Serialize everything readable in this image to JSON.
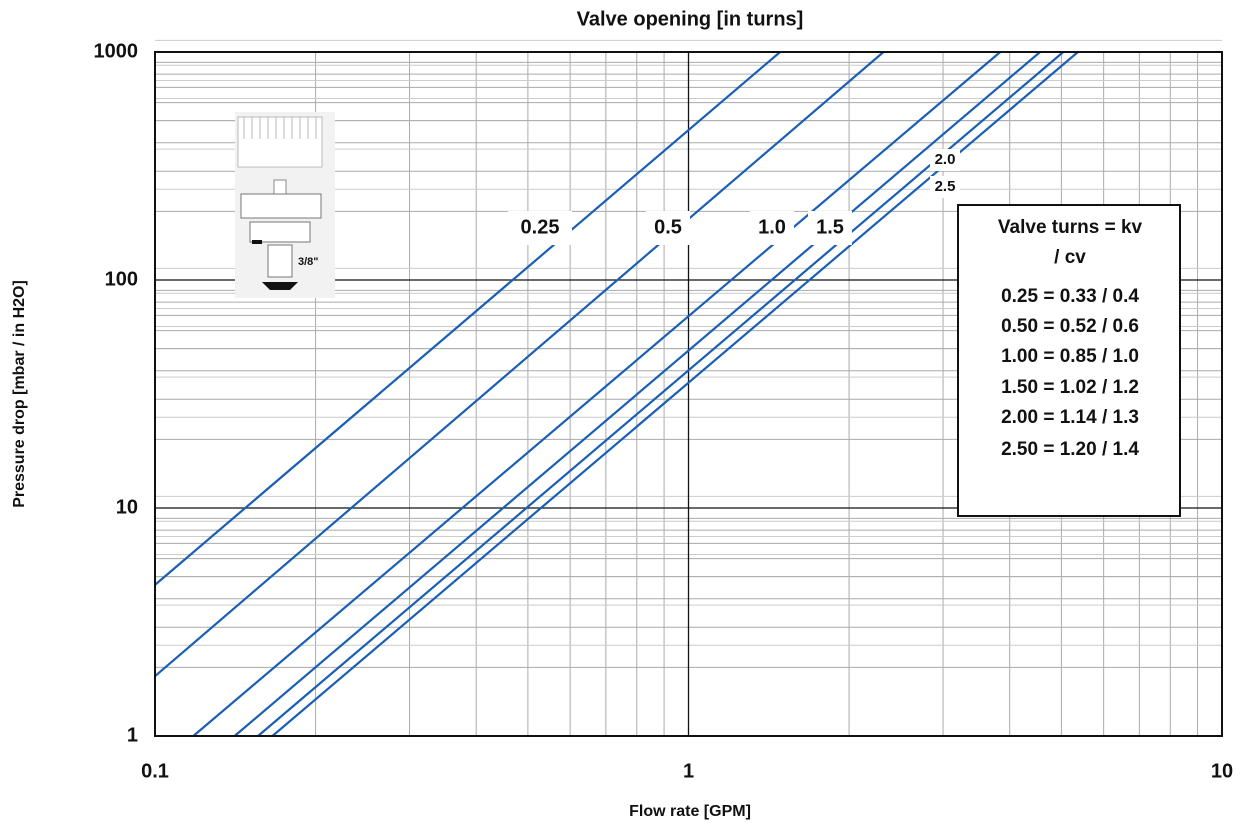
{
  "chart_data": {
    "type": "line",
    "title": "Valve opening [in turns]",
    "x_label": "Flow rate  [GPM]",
    "y_label": "Pressure drop  [mbar / in H2O]",
    "log_x": true,
    "log_y": true,
    "grid": true,
    "xlim": [
      0.1,
      10
    ],
    "xticks": [
      0.1,
      1,
      10
    ],
    "ylim": [
      1,
      1000
    ],
    "yticks": [
      1,
      10,
      100,
      1000
    ],
    "series": [
      {
        "name": "0.25",
        "color": "#1a5fb4",
        "x": [
          0.1,
          1.485
        ],
        "values": [
          4.6,
          1000
        ]
      },
      {
        "name": "0.5",
        "color": "#1a5fb4",
        "x": [
          0.1,
          2.32
        ],
        "values": [
          1.83,
          1000
        ]
      },
      {
        "name": "1.0",
        "color": "#1a5fb4",
        "x": [
          0.118,
          3.84
        ],
        "values": [
          1,
          1000
        ]
      },
      {
        "name": "1.5",
        "color": "#1a5fb4",
        "x": [
          0.141,
          4.56
        ],
        "values": [
          1,
          1000
        ]
      },
      {
        "name": "2.0",
        "color": "#1a5fb4",
        "x": [
          0.156,
          5.04
        ],
        "values": [
          1,
          1000
        ]
      },
      {
        "name": "2.5",
        "color": "#1a5fb4",
        "x": [
          0.166,
          5.37
        ],
        "values": [
          1,
          1000
        ]
      }
    ],
    "box_lines": [
      "Valve turns =  kv",
      "/ cv",
      "0.25 = 0.33 / 0.4",
      "0.50 = 0.52 / 0.6",
      "1.00 = 0.85 / 1.0",
      "1.50 = 1.02 / 1.2",
      "2.00 = 1.14 / 1.3",
      "2.50 = 1.20 / 1.4"
    ],
    "image_label": "3/8\""
  }
}
